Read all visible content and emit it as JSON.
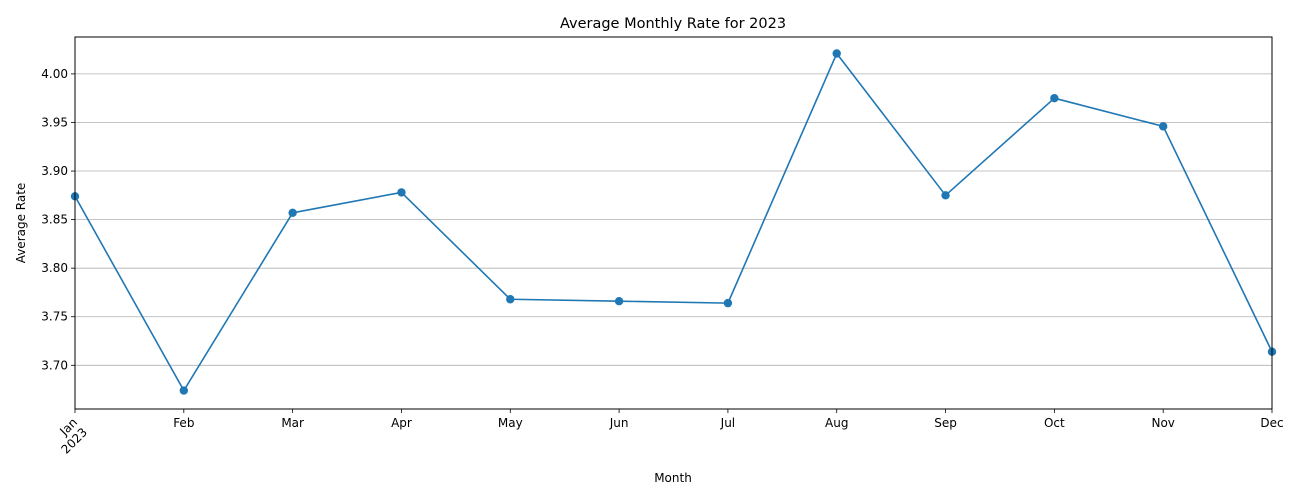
{
  "chart_data": {
    "type": "line",
    "title": "Average Monthly Rate for 2023",
    "xlabel": "Month",
    "ylabel": "Average Rate",
    "x_year_label": "2023",
    "categories": [
      "Jan",
      "Feb",
      "Mar",
      "Apr",
      "May",
      "Jun",
      "Jul",
      "Aug",
      "Sep",
      "Oct",
      "Nov",
      "Dec"
    ],
    "series": [
      {
        "values": [
          3.874,
          3.674,
          3.857,
          3.878,
          3.768,
          3.766,
          3.764,
          4.021,
          3.875,
          3.975,
          3.946,
          3.714
        ],
        "color": "#1f77b4",
        "marker": "circle"
      }
    ],
    "ylim": [
      3.655,
      4.038
    ],
    "yticks": [
      "3.70",
      "3.75",
      "3.80",
      "3.85",
      "3.90",
      "3.95",
      "4.00"
    ],
    "grid": "y-major",
    "legend": "none"
  }
}
